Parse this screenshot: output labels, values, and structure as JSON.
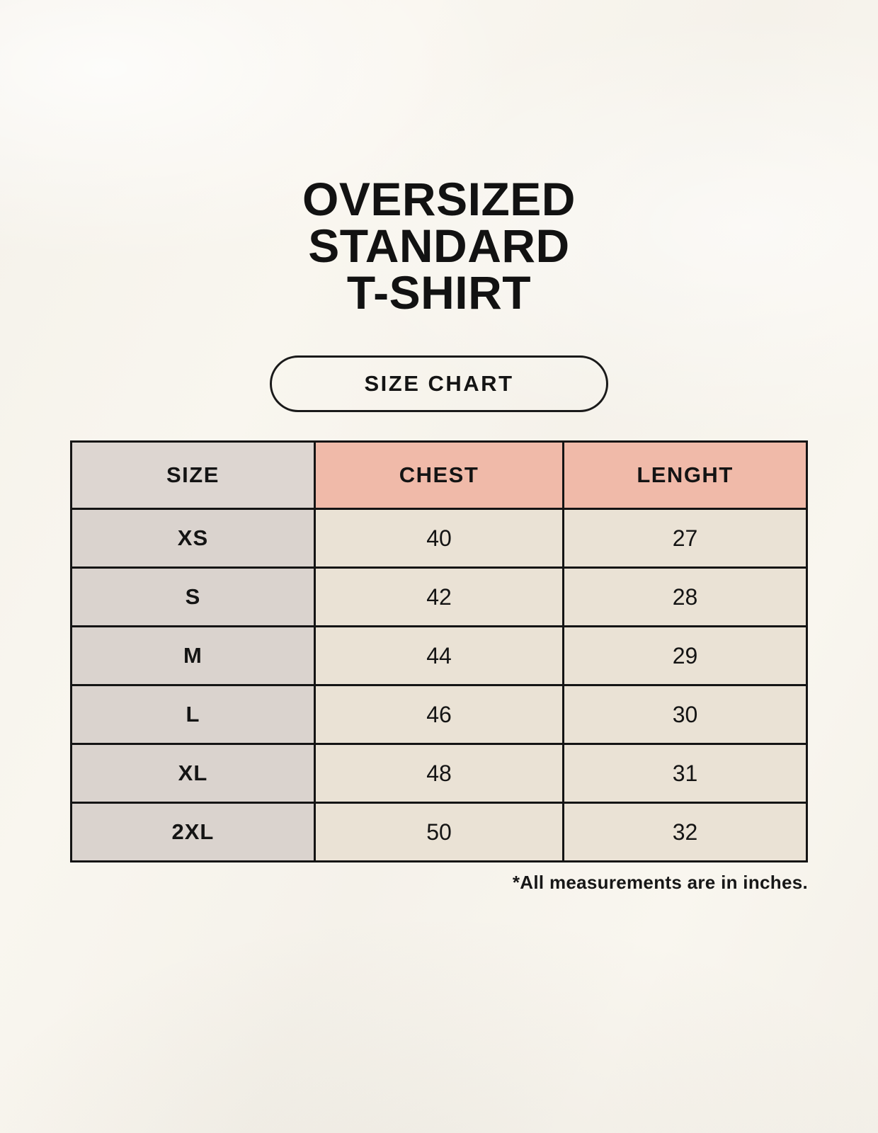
{
  "page": {
    "background_color": "#f9f6ef",
    "text_color": "#141414"
  },
  "title": {
    "line1": "OVERSIZED",
    "line2": "STANDARD",
    "line3": "T-SHIRT"
  },
  "size_chart_pill": {
    "label": "SIZE CHART"
  },
  "chart_data": {
    "type": "table",
    "title": "OVERSIZED STANDARD T-SHIRT",
    "columns": [
      "SIZE",
      "CHEST",
      "LENGHT"
    ],
    "rows": [
      {
        "size": "XS",
        "chest": "40",
        "length": "27"
      },
      {
        "size": "S",
        "chest": "42",
        "length": "28"
      },
      {
        "size": "M",
        "chest": "44",
        "length": "29"
      },
      {
        "size": "L",
        "chest": "46",
        "length": "30"
      },
      {
        "size": "XL",
        "chest": "48",
        "length": "31"
      },
      {
        "size": "2XL",
        "chest": "50",
        "length": "32"
      }
    ],
    "units": "inches",
    "layout": {
      "header_accent_color": "#f0baa9",
      "header_neutral_color": "#ddd6d1",
      "row_label_color": "#dad3ce",
      "cell_color": "#eae2d5",
      "border_color": "#141414"
    }
  },
  "footnote": {
    "text": "*All measurements are in inches."
  }
}
